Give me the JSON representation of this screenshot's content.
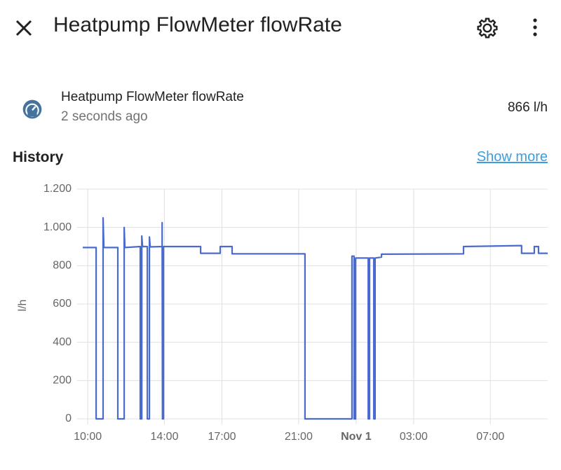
{
  "header": {
    "title": "Heatpump FlowMeter flowRate"
  },
  "entity": {
    "name": "Heatpump FlowMeter flowRate",
    "updated": "2 seconds ago",
    "state": "866 l/h"
  },
  "history": {
    "title": "History",
    "link": "Show more"
  },
  "chart_data": {
    "type": "line",
    "y_label": "l/h",
    "x": [
      9.74,
      10.44,
      10.44,
      10.8,
      10.8,
      10.84,
      11.57,
      11.57,
      11.9,
      11.9,
      11.94,
      12.74,
      12.74,
      12.82,
      12.82,
      12.86,
      13.11,
      13.11,
      13.22,
      13.22,
      13.26,
      13.88,
      13.88,
      13.9,
      13.95,
      13.95,
      15.89,
      15.89,
      16.91,
      16.91,
      17.53,
      17.53,
      21.33,
      21.33,
      23.78,
      23.78,
      23.89,
      23.89,
      23.97,
      23.97,
      24.63,
      24.63,
      24.7,
      24.7,
      24.92,
      24.92,
      24.99,
      24.99,
      25.32,
      25.32,
      29.6,
      29.6,
      32.63,
      32.63,
      33.29,
      33.29,
      33.51,
      33.51,
      33.99
    ],
    "series": [
      {
        "color": "#4a6bcd",
        "values": [
          895,
          895,
          0,
          0,
          1050,
          895,
          895,
          0,
          0,
          1000,
          895,
          900,
          0,
          0,
          955,
          900,
          900,
          0,
          0,
          950,
          898,
          900,
          1025,
          0,
          0,
          900,
          900,
          865,
          865,
          900,
          900,
          862,
          862,
          0,
          0,
          850,
          850,
          0,
          0,
          840,
          840,
          0,
          0,
          840,
          840,
          0,
          0,
          840,
          845,
          860,
          862,
          900,
          905,
          865,
          865,
          900,
          900,
          865,
          865
        ]
      }
    ],
    "xlim": [
      9.74,
      33.99
    ],
    "xticks": [
      {
        "value": 10,
        "label": "10:00"
      },
      {
        "value": 14,
        "label": "14:00"
      },
      {
        "value": 17,
        "label": "17:00"
      },
      {
        "value": 21,
        "label": "21:00"
      },
      {
        "value": 24,
        "label": "Nov 1"
      },
      {
        "value": 27,
        "label": "03:00"
      },
      {
        "value": 31,
        "label": "07:00"
      }
    ],
    "ylim": [
      0,
      1200
    ],
    "yticks": [
      0,
      200,
      400,
      600,
      800,
      {
        "value": 1000,
        "label": "1.000"
      },
      {
        "value": 1200,
        "label": "1.200"
      }
    ],
    "grid": true
  }
}
